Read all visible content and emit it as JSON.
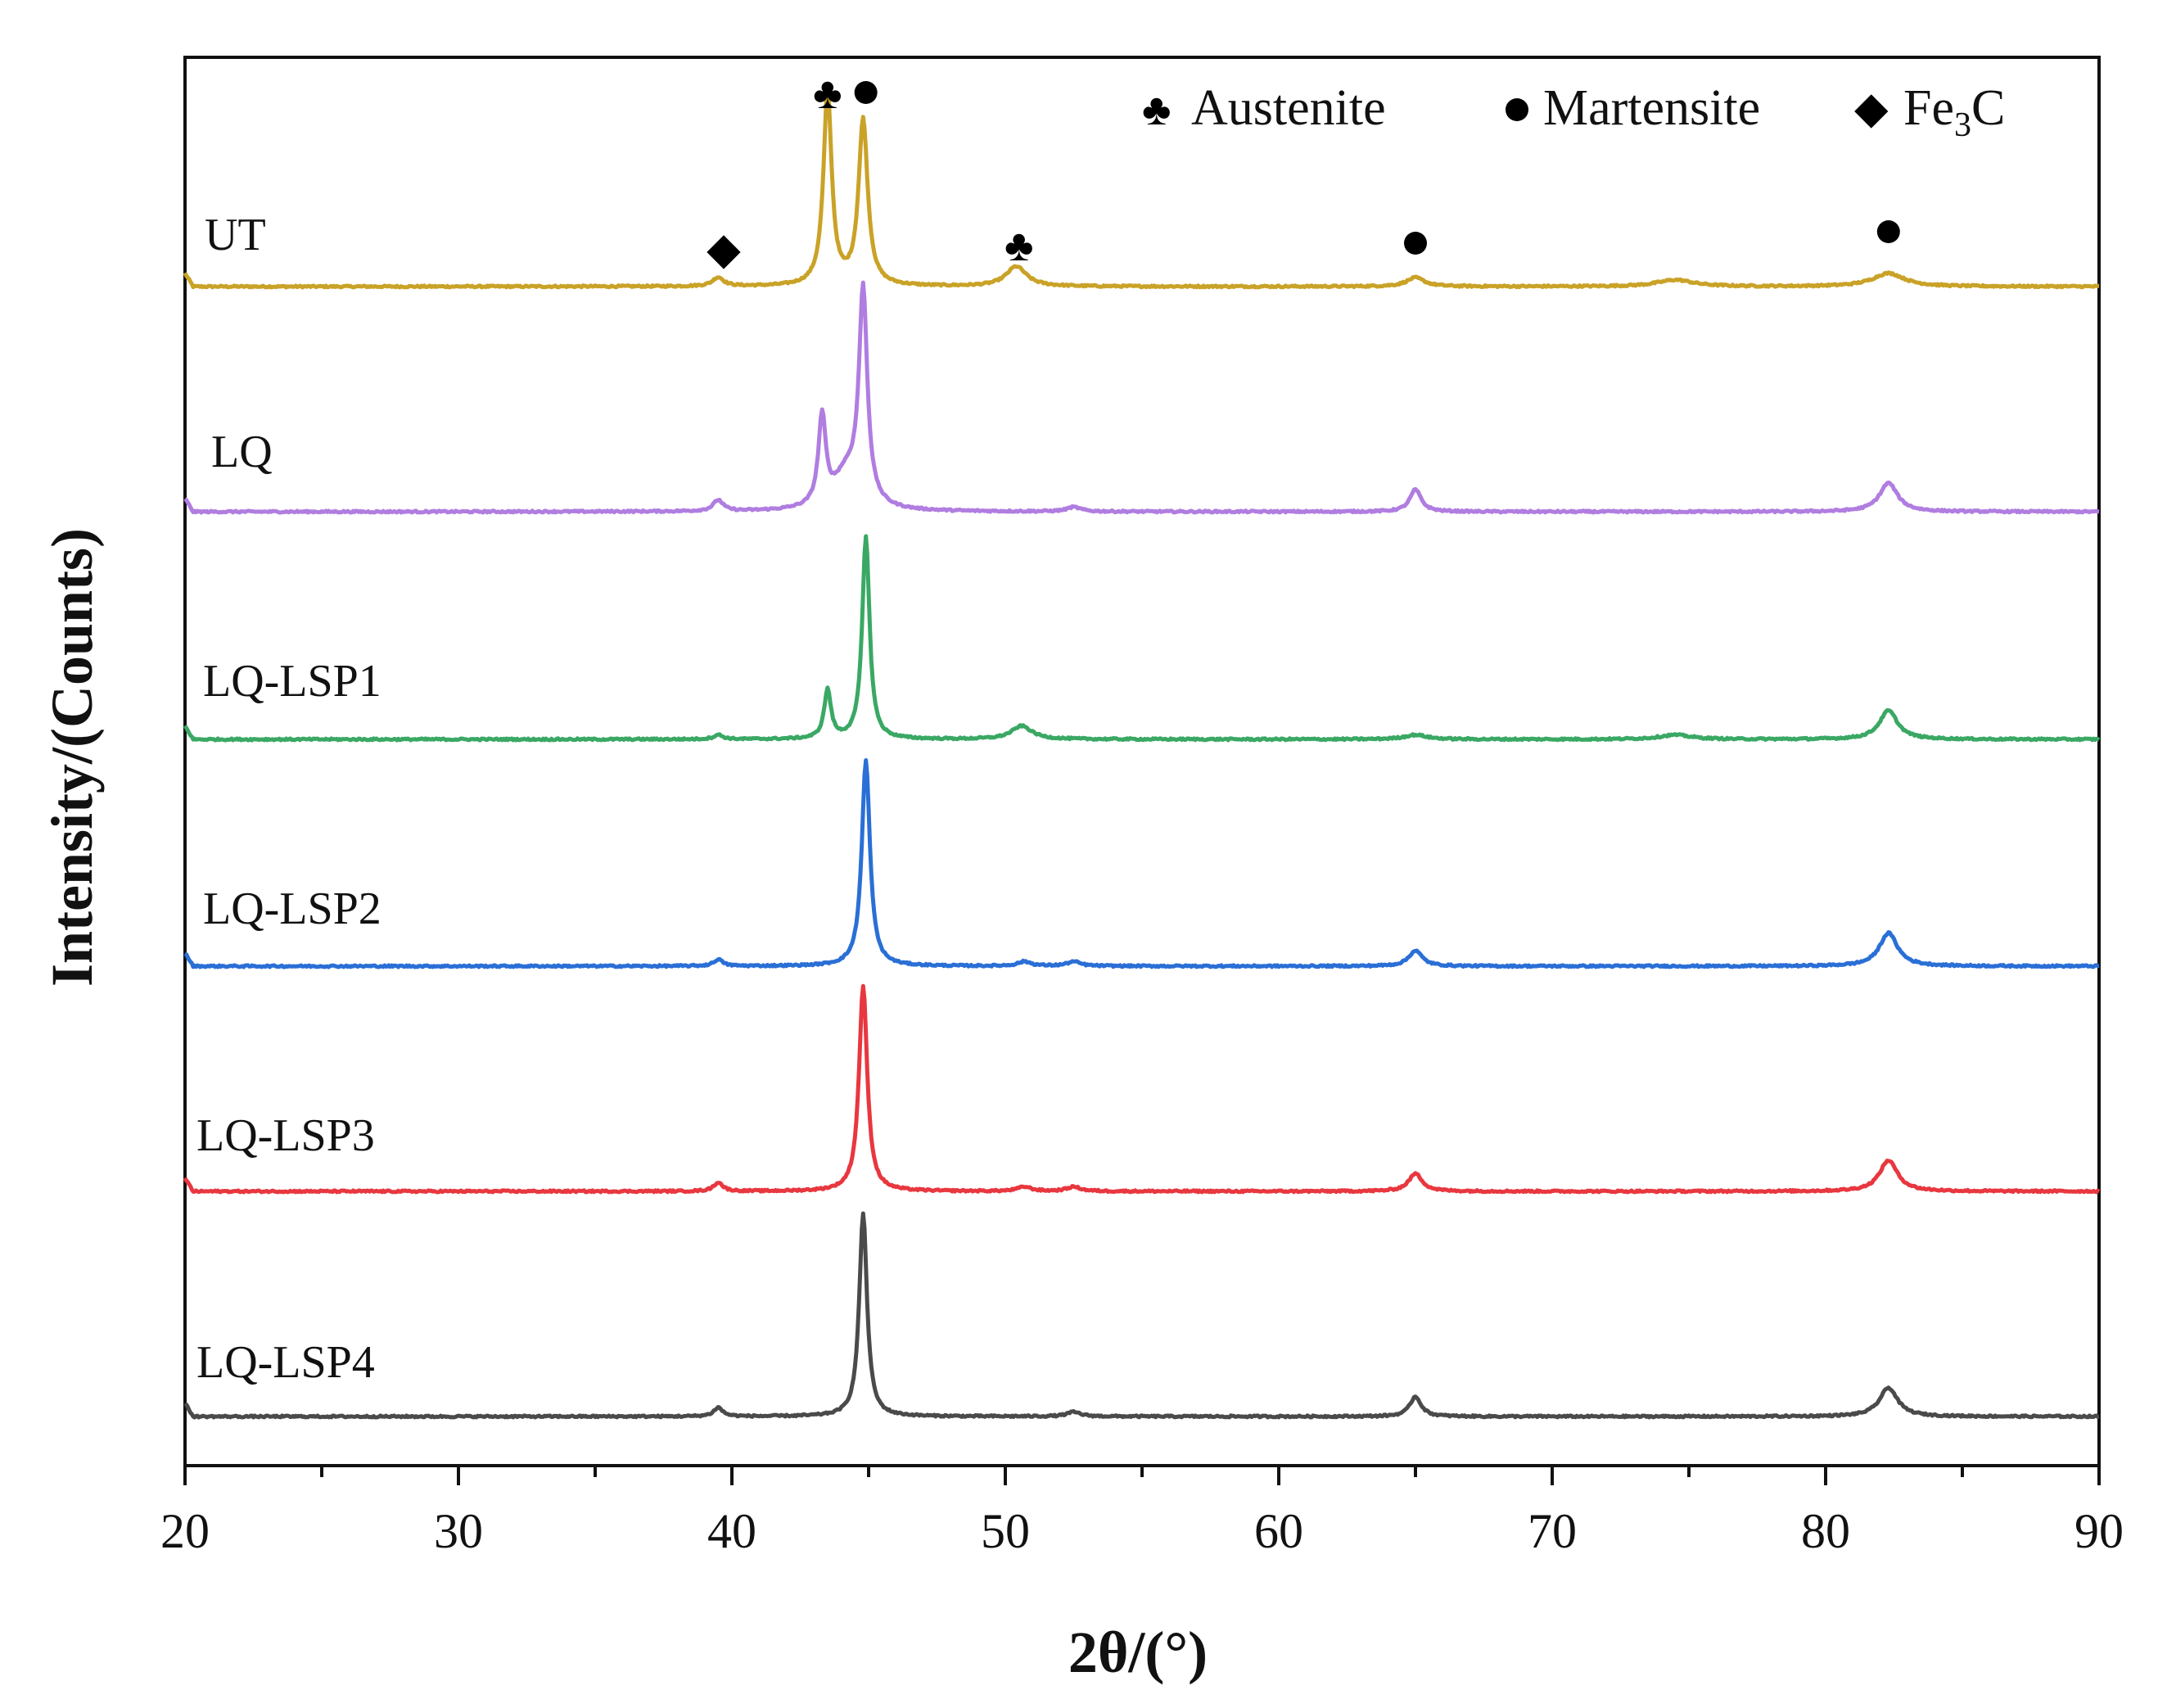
{
  "chart_data": {
    "type": "line",
    "title": "",
    "xlabel": "2θ/(°)",
    "ylabel": "Intensity/(Counts)",
    "xlim": [
      20,
      90
    ],
    "xticks": [
      20,
      30,
      40,
      50,
      60,
      70,
      80,
      90
    ],
    "tick_labels": [
      "20",
      "30",
      "40",
      "50",
      "60",
      "70",
      "80",
      "90"
    ],
    "grid": false,
    "legend": {
      "position": "top-right",
      "entries": [
        {
          "symbol": "club",
          "label": "Austenite"
        },
        {
          "symbol": "dot",
          "label": "Martensite"
        },
        {
          "symbol": "diamond",
          "label": "Fe3C",
          "text_main": "Fe",
          "text_sub": "3",
          "text_tail": "C"
        }
      ]
    },
    "series": [
      {
        "name": "UT",
        "color": "#c9a227",
        "peaks": [
          [
            39.5,
            0.04,
            0.25
          ],
          [
            43.5,
            0.88,
            0.18
          ],
          [
            44.8,
            0.75,
            0.2
          ],
          [
            50.4,
            0.09,
            0.45
          ],
          [
            65.0,
            0.04,
            0.4
          ],
          [
            74.5,
            0.03,
            0.8
          ],
          [
            82.3,
            0.06,
            0.7
          ]
        ],
        "noise": 0.008
      },
      {
        "name": "LQ",
        "color": "#b07de0",
        "peaks": [
          [
            39.5,
            0.05,
            0.22
          ],
          [
            43.3,
            0.4,
            0.16
          ],
          [
            44.2,
            0.16,
            0.6
          ],
          [
            44.8,
            0.95,
            0.18
          ],
          [
            52.5,
            0.02,
            0.3
          ],
          [
            65.0,
            0.1,
            0.25
          ],
          [
            82.3,
            0.13,
            0.4
          ]
        ],
        "noise": 0.008
      },
      {
        "name": "LQ-LSP1",
        "color": "#3aa864",
        "peaks": [
          [
            39.5,
            0.02,
            0.2
          ],
          [
            43.5,
            0.22,
            0.15
          ],
          [
            44.9,
            0.92,
            0.16
          ],
          [
            50.6,
            0.06,
            0.45
          ],
          [
            65.0,
            0.02,
            0.5
          ],
          [
            74.5,
            0.02,
            0.7
          ],
          [
            82.3,
            0.13,
            0.4
          ]
        ],
        "noise": 0.008
      },
      {
        "name": "LQ-LSP2",
        "color": "#2a6fd6",
        "peaks": [
          [
            39.5,
            0.03,
            0.2
          ],
          [
            44.9,
            0.93,
            0.18
          ],
          [
            50.7,
            0.02,
            0.3
          ],
          [
            52.5,
            0.02,
            0.3
          ],
          [
            65.0,
            0.07,
            0.3
          ],
          [
            82.3,
            0.15,
            0.4
          ]
        ],
        "noise": 0.008
      },
      {
        "name": "LQ-LSP3",
        "color": "#e8373f",
        "peaks": [
          [
            39.5,
            0.04,
            0.2
          ],
          [
            44.8,
            0.93,
            0.18
          ],
          [
            50.7,
            0.02,
            0.3
          ],
          [
            52.5,
            0.02,
            0.3
          ],
          [
            65.0,
            0.08,
            0.3
          ],
          [
            82.3,
            0.14,
            0.4
          ]
        ],
        "noise": 0.008
      },
      {
        "name": "LQ-LSP4",
        "color": "#4a4a4a",
        "peaks": [
          [
            39.5,
            0.04,
            0.2
          ],
          [
            44.8,
            0.92,
            0.17
          ],
          [
            52.5,
            0.02,
            0.3
          ],
          [
            65.0,
            0.09,
            0.25
          ],
          [
            82.3,
            0.13,
            0.4
          ]
        ],
        "noise": 0.008
      }
    ],
    "phase_markers": [
      {
        "symbol": "diamond",
        "x": 39.7,
        "series": "UT"
      },
      {
        "symbol": "club",
        "x": 43.5,
        "series": "UT"
      },
      {
        "symbol": "dot",
        "x": 44.9,
        "series": "UT"
      },
      {
        "symbol": "club",
        "x": 50.5,
        "series": "UT"
      },
      {
        "symbol": "dot",
        "x": 65.0,
        "series": "UT"
      },
      {
        "symbol": "dot",
        "x": 82.3,
        "series": "UT"
      }
    ]
  }
}
